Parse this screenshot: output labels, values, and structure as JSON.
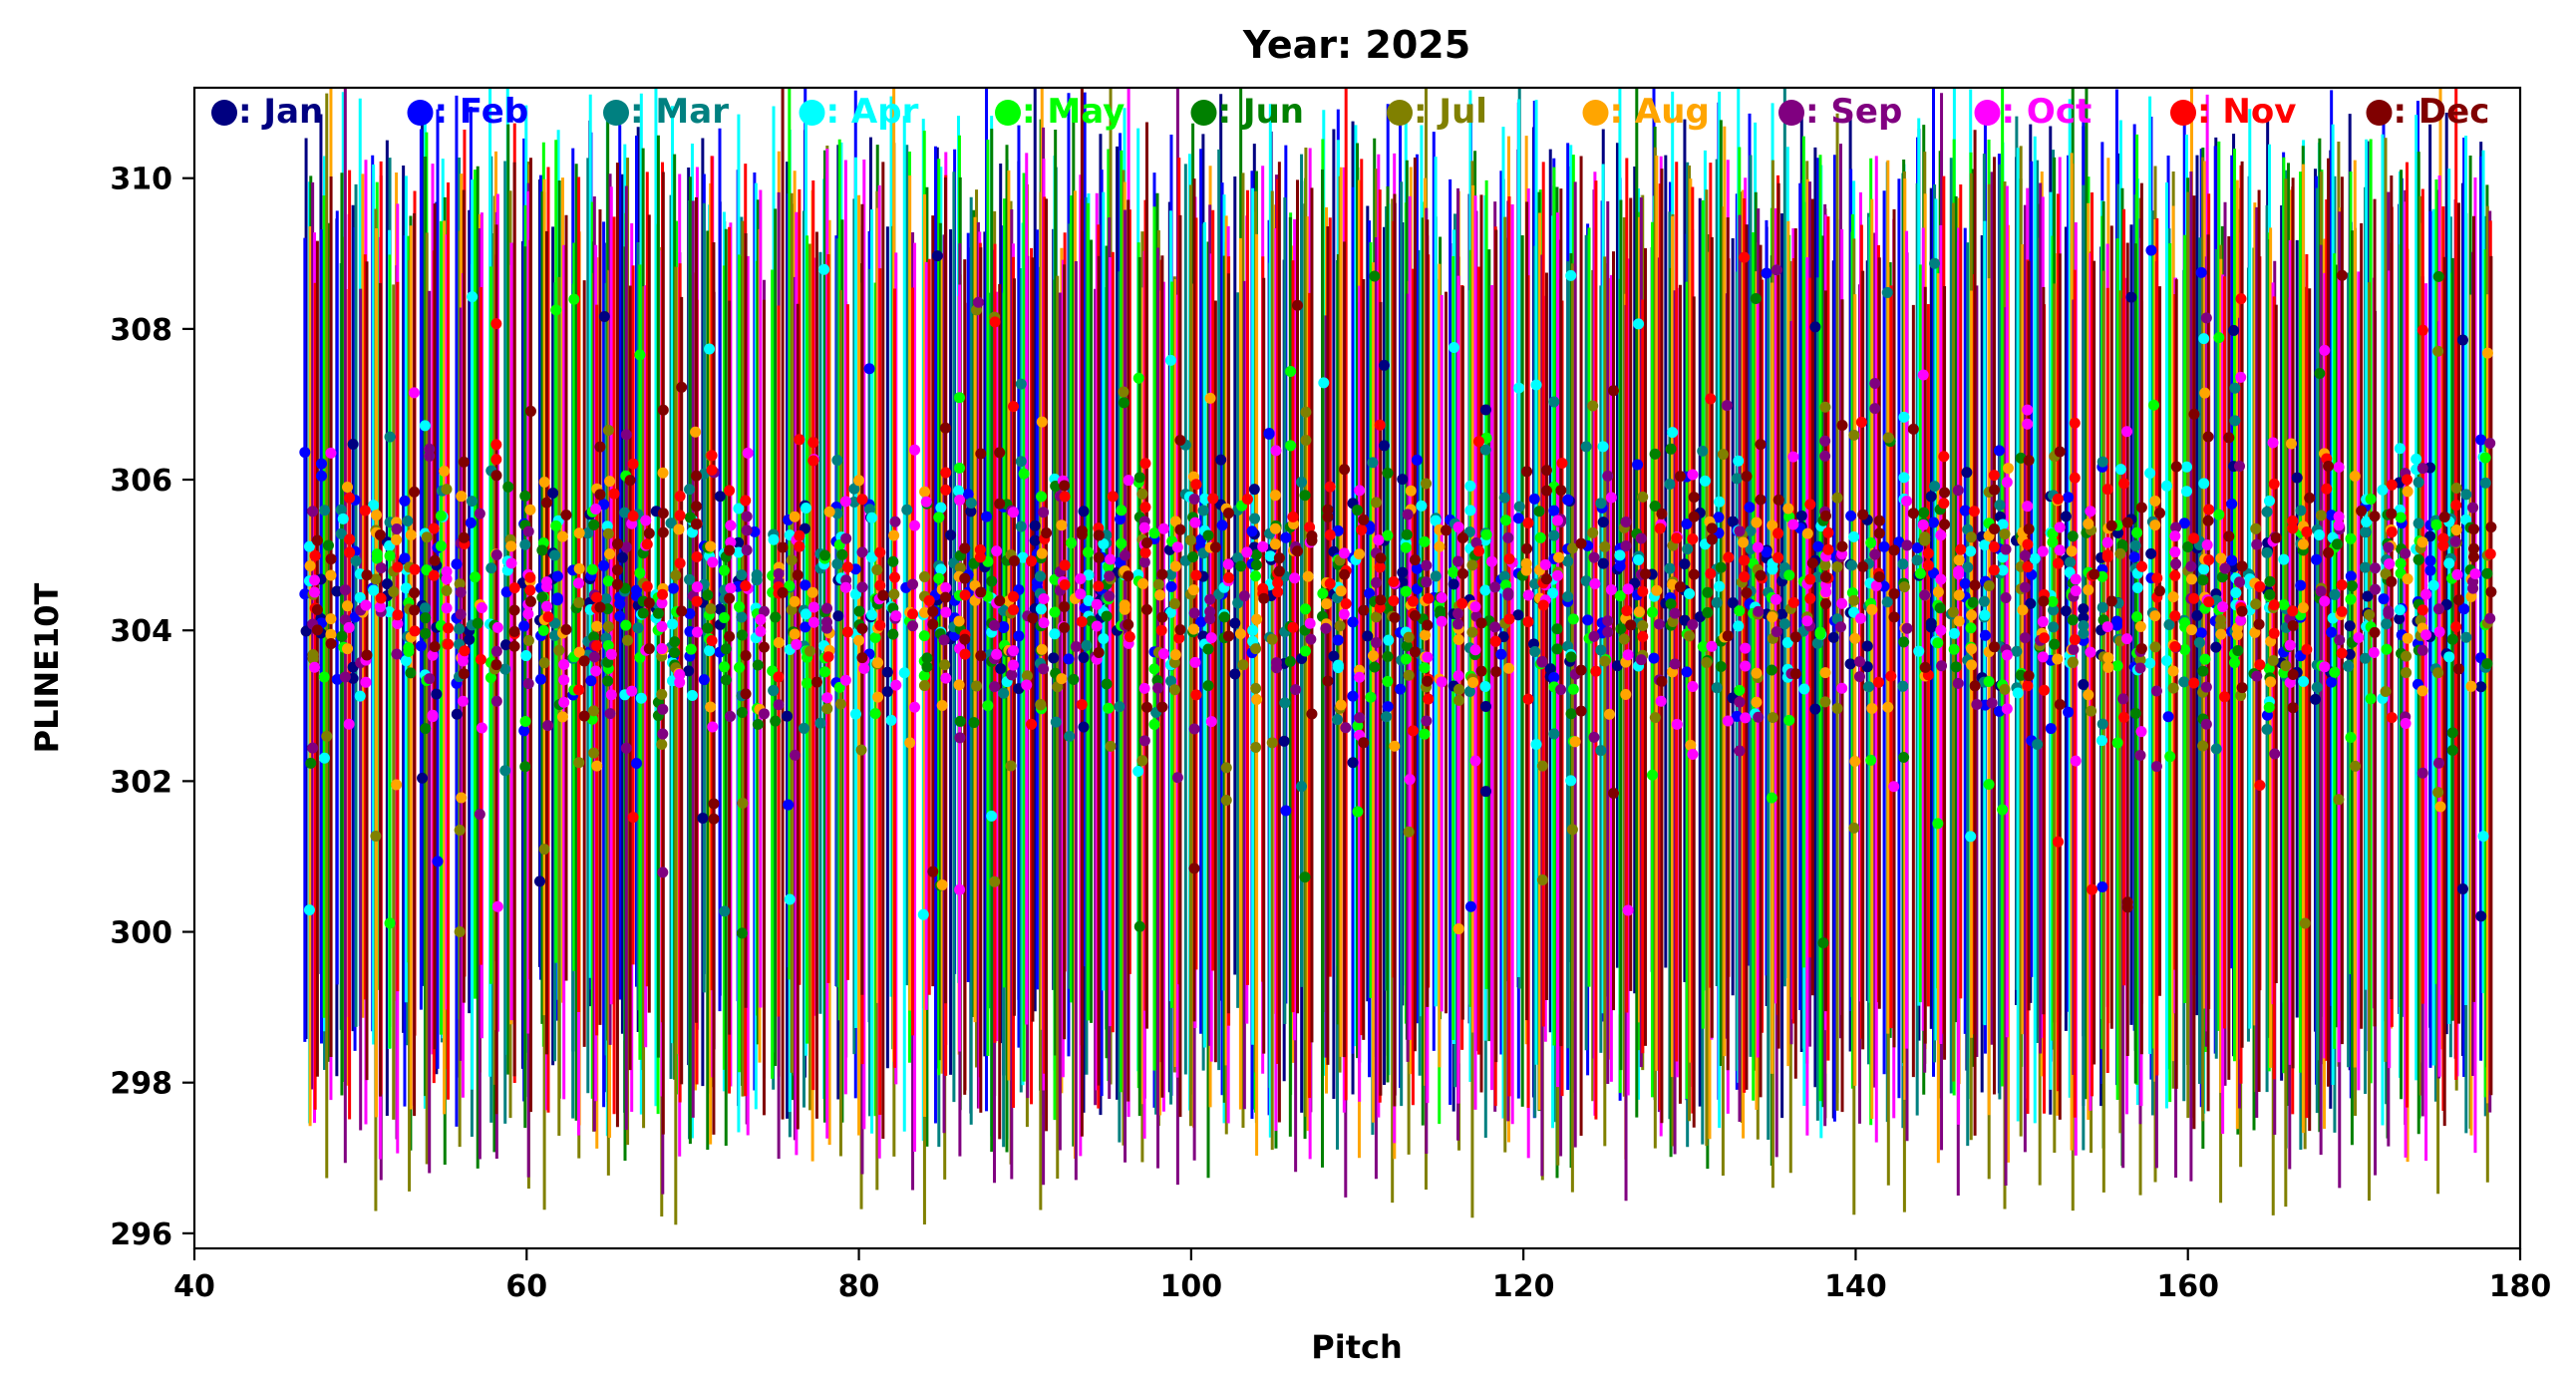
{
  "chart_data": {
    "type": "scatter",
    "title": "Year: 2025",
    "xlabel": "Pitch",
    "ylabel": "PLINE10T",
    "xlim": [
      40,
      180
    ],
    "ylim": [
      295.8,
      311.2
    ],
    "xticks": [
      40,
      60,
      80,
      100,
      120,
      140,
      160,
      180
    ],
    "yticks": [
      296,
      298,
      300,
      302,
      304,
      306,
      308,
      310
    ],
    "xtick_labels": [
      "40",
      "60",
      "80",
      "100",
      "120",
      "140",
      "160",
      "180"
    ],
    "ytick_labels": [
      "296",
      "298",
      "300",
      "302",
      "304",
      "306",
      "308",
      "310"
    ],
    "grid": false,
    "legend_position": "top",
    "pitch_range": [
      47,
      178
    ],
    "error_bars": "vertical range bars per pitch and month",
    "series": [
      {
        "name": ": Jan",
        "color": "#000080",
        "mean": 304.6,
        "spread": 1.2,
        "bar_low": 298.6,
        "bar_high": 309.9
      },
      {
        "name": ": Feb",
        "color": "#0000ff",
        "mean": 304.7,
        "spread": 1.2,
        "bar_low": 298.5,
        "bar_high": 310.2
      },
      {
        "name": ": Mar",
        "color": "#008080",
        "mean": 304.5,
        "spread": 1.3,
        "bar_low": 298.2,
        "bar_high": 309.4
      },
      {
        "name": ": Apr",
        "color": "#00ffff",
        "mean": 304.6,
        "spread": 1.4,
        "bar_low": 298.3,
        "bar_high": 310.3
      },
      {
        "name": ": May",
        "color": "#00ff00",
        "mean": 304.4,
        "spread": 1.3,
        "bar_low": 298.5,
        "bar_high": 309.6
      },
      {
        "name": ": Jun",
        "color": "#008000",
        "mean": 304.3,
        "spread": 1.3,
        "bar_low": 297.8,
        "bar_high": 309.8
      },
      {
        "name": ": Jul",
        "color": "#808000",
        "mean": 304.2,
        "spread": 1.5,
        "bar_low": 297.2,
        "bar_high": 309.5
      },
      {
        "name": ": Aug",
        "color": "#ffa500",
        "mean": 304.4,
        "spread": 1.4,
        "bar_low": 298.0,
        "bar_high": 309.4
      },
      {
        "name": ": Sep",
        "color": "#800080",
        "mean": 304.3,
        "spread": 1.4,
        "bar_low": 297.5,
        "bar_high": 309.1
      },
      {
        "name": ": Oct",
        "color": "#ff00ff",
        "mean": 304.5,
        "spread": 1.4,
        "bar_low": 298.0,
        "bar_high": 309.4
      },
      {
        "name": ": Nov",
        "color": "#ff0000",
        "mean": 304.8,
        "spread": 1.3,
        "bar_low": 298.6,
        "bar_high": 309.3
      },
      {
        "name": ": Dec",
        "color": "#800000",
        "mean": 304.6,
        "spread": 1.3,
        "bar_low": 298.3,
        "bar_high": 309.3
      }
    ]
  }
}
